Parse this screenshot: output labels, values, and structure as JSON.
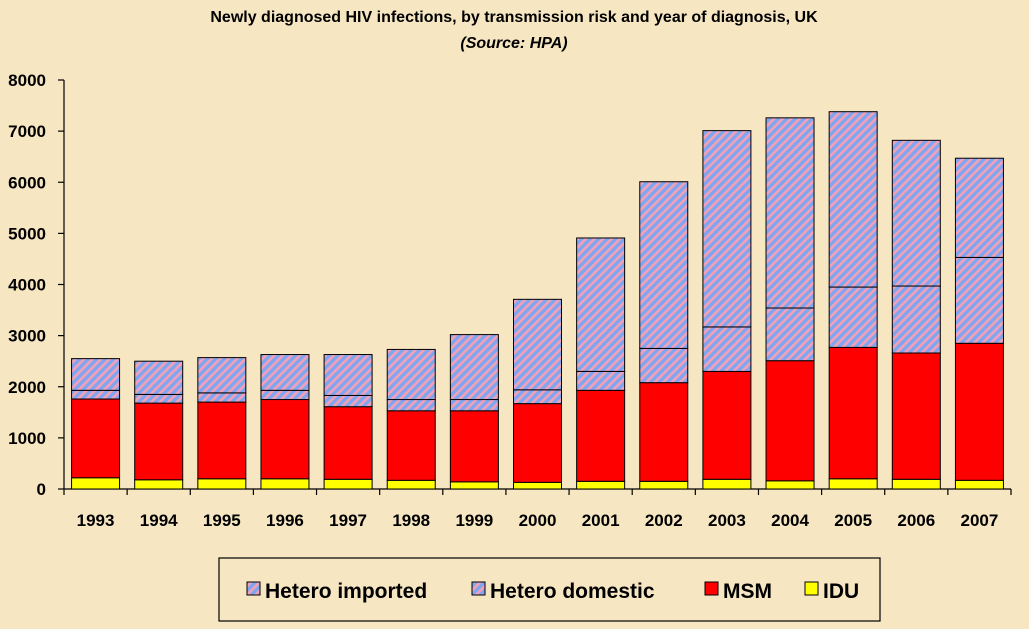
{
  "colors": {
    "background": "#f7e6c2",
    "hetero_imported_base": "#7fa6ee",
    "hetero_imported_stripe": "#f5a0b9",
    "hetero_domestic_base": "#7fa6ee",
    "hetero_domestic_stripe": "#f5a0b9",
    "msm": "#ff0000",
    "idu": "#ffff00",
    "outline": "#000000"
  },
  "chart_data": {
    "type": "bar",
    "stacked": true,
    "title": "Newly diagnosed HIV infections, by transmission risk and year of diagnosis, UK",
    "subtitle": "(Source: HPA)",
    "xlabel": "",
    "ylabel": "",
    "ylim": [
      0,
      8000
    ],
    "yticks": [
      0,
      1000,
      2000,
      3000,
      4000,
      5000,
      6000,
      7000,
      8000
    ],
    "grid": false,
    "legend_position": "bottom",
    "categories": [
      "1993",
      "1994",
      "1995",
      "1996",
      "1997",
      "1998",
      "1999",
      "2000",
      "2001",
      "2002",
      "2003",
      "2004",
      "2005",
      "2006",
      "2007"
    ],
    "series": [
      {
        "name": "IDU",
        "key": "idu",
        "values": [
          220,
          180,
          200,
          200,
          190,
          170,
          140,
          130,
          150,
          150,
          190,
          160,
          200,
          190,
          170
        ]
      },
      {
        "name": "MSM",
        "key": "msm",
        "values": [
          1540,
          1500,
          1500,
          1550,
          1420,
          1360,
          1390,
          1540,
          1780,
          1930,
          2110,
          2350,
          2570,
          2470,
          2680
        ]
      },
      {
        "name": "Hetero domestic",
        "key": "hetero_domestic",
        "values": [
          170,
          170,
          180,
          180,
          220,
          220,
          220,
          270,
          370,
          670,
          870,
          1030,
          1180,
          1310,
          1680
        ]
      },
      {
        "name": "Hetero imported",
        "key": "hetero_imported",
        "values": [
          620,
          650,
          690,
          700,
          800,
          980,
          1270,
          1770,
          2610,
          3260,
          3840,
          3720,
          3430,
          2850,
          1940
        ]
      }
    ],
    "legend_order": [
      "hetero_imported",
      "hetero_domestic",
      "msm",
      "idu"
    ]
  }
}
